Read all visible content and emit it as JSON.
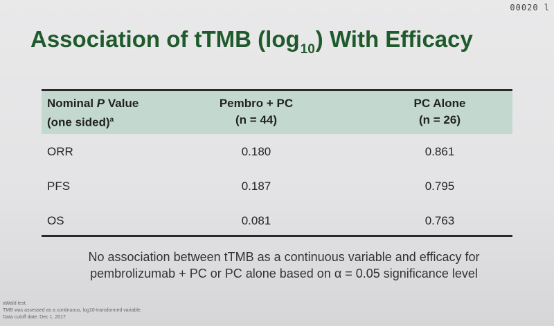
{
  "slide_id": "00020 l",
  "title": {
    "before": "Association of tTMB (log",
    "subscript": "10",
    "after": ") With Efficacy"
  },
  "table": {
    "headers": [
      {
        "line1_pre": "Nominal ",
        "line1_italic": "P",
        "line1_post": " Value",
        "line2": "(one sided)",
        "sup": "a"
      },
      {
        "line1": "Pembro + PC",
        "line2": "(n = 44)"
      },
      {
        "line1": "PC Alone",
        "line2": "(n = 26)"
      }
    ],
    "rows": [
      {
        "label": "ORR",
        "pembro_pc": "0.180",
        "pc_alone": "0.861"
      },
      {
        "label": "PFS",
        "pembro_pc": "0.187",
        "pc_alone": "0.795"
      },
      {
        "label": "OS",
        "pembro_pc": "0.081",
        "pc_alone": "0.763"
      }
    ]
  },
  "conclusion": {
    "line1": "No association between tTMB as a continuous variable and efficacy for",
    "line2": "pembrolizumab + PC or PC alone based on α = 0.05 significance level"
  },
  "footnotes": [
    "aWald test.",
    "TMB was assessed as a continuous, log10-transformed variable.",
    "Data cutoff date: Dec 1, 2017"
  ],
  "colors": {
    "title": "#1f5a2c",
    "header_band": "#c3d9cf",
    "rules": "#2a2a2a"
  }
}
